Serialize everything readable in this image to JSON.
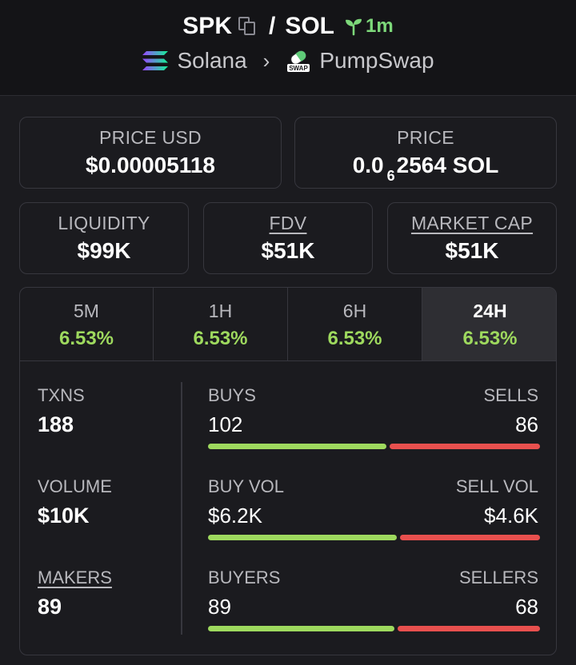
{
  "header": {
    "token": "SPK",
    "quote": "SOL",
    "separator": "/",
    "age": "1m",
    "chain": "Solana",
    "dex": "PumpSwap",
    "dex_badge": "SWAP",
    "icons": [
      "copy-icon",
      "sprout-icon",
      "solana-icon",
      "chevron-right-icon",
      "pumpswap-icon"
    ]
  },
  "price_usd": {
    "label": "PRICE USD",
    "value": "$0.00005118"
  },
  "price_native": {
    "label": "PRICE",
    "prefix": "0.0",
    "zeros": "6",
    "digits": "2564",
    "unit": "SOL"
  },
  "liquidity": {
    "label": "LIQUIDITY",
    "value": "$99K"
  },
  "fdv": {
    "label": "FDV",
    "value": "$51K"
  },
  "market_cap": {
    "label": "MARKET CAP",
    "value": "$51K"
  },
  "tabs": [
    {
      "label": "5M",
      "value": "6.53%"
    },
    {
      "label": "1H",
      "value": "6.53%"
    },
    {
      "label": "6H",
      "value": "6.53%"
    },
    {
      "label": "24H",
      "value": "6.53%",
      "active": true
    }
  ],
  "stats": {
    "txns": {
      "label": "TXNS",
      "value": "188"
    },
    "volume": {
      "label": "VOLUME",
      "value": "$10K"
    },
    "makers": {
      "label": "MAKERS",
      "value": "89"
    }
  },
  "breakdown": {
    "buys": {
      "label": "BUYS",
      "value": "102",
      "share": 0.543
    },
    "sells": {
      "label": "SELLS",
      "value": "86",
      "share": 0.457
    },
    "buy_vol": {
      "label": "BUY VOL",
      "value": "$6.2K",
      "share": 0.574
    },
    "sell_vol": {
      "label": "SELL VOL",
      "value": "$4.6K",
      "share": 0.426
    },
    "buyers": {
      "label": "BUYERS",
      "value": "89",
      "share": 0.567
    },
    "sellers": {
      "label": "SELLERS",
      "value": "68",
      "share": 0.433
    }
  },
  "colors": {
    "positive": "#9ed95e",
    "negative": "#e8504e",
    "accent_age": "#7dd87a",
    "background": "#1b1b1f",
    "border": "#37373e"
  }
}
